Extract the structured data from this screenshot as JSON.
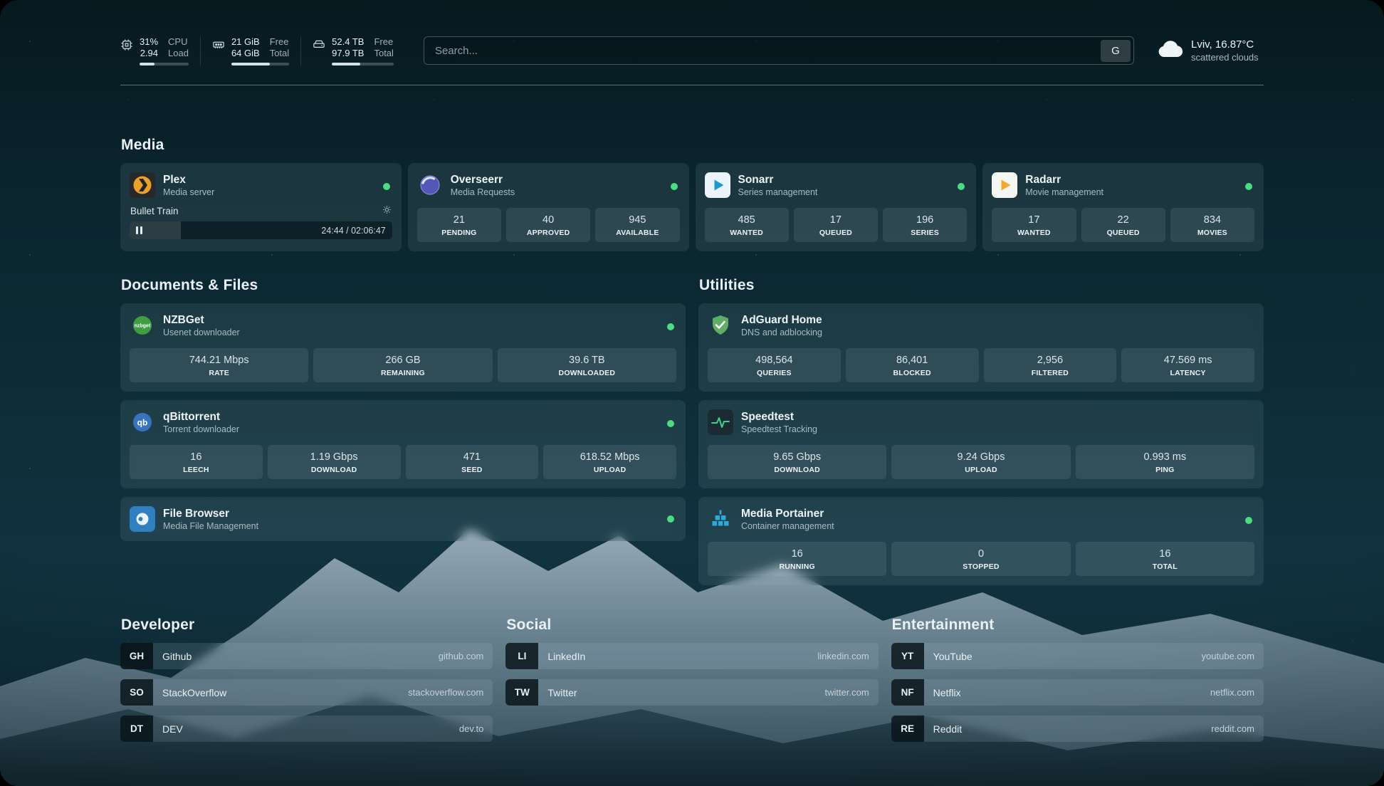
{
  "header": {
    "metrics": [
      {
        "icon": "cpu-icon",
        "rows": [
          {
            "value": "31%",
            "label": "CPU"
          },
          {
            "value": "2.94",
            "label": "Load"
          }
        ],
        "bar": 31
      },
      {
        "icon": "memory-icon",
        "rows": [
          {
            "value": "21 GiB",
            "label": "Free"
          },
          {
            "value": "64 GiB",
            "label": "Total"
          }
        ],
        "bar": 67
      },
      {
        "icon": "disk-icon",
        "rows": [
          {
            "value": "52.4 TB",
            "label": "Free"
          },
          {
            "value": "97.9 TB",
            "label": "Total"
          }
        ],
        "bar": 46
      }
    ],
    "search": {
      "placeholder": "Search...",
      "button_label": "G"
    },
    "weather": {
      "location": "Lviv, 16.87°C",
      "condition": "scattered clouds"
    }
  },
  "groups": {
    "media": {
      "title": "Media",
      "cards": [
        {
          "name": "Plex",
          "subtitle": "Media server",
          "icon": "plex-icon",
          "online": true,
          "player": {
            "title": "Bullet Train",
            "time": "24:44 / 02:06:47",
            "progress": 19.5
          }
        },
        {
          "name": "Overseerr",
          "subtitle": "Media Requests",
          "icon": "overseerr-icon",
          "online": true,
          "stats": [
            {
              "value": "21",
              "label": "PENDING"
            },
            {
              "value": "40",
              "label": "APPROVED"
            },
            {
              "value": "945",
              "label": "AVAILABLE"
            }
          ]
        },
        {
          "name": "Sonarr",
          "subtitle": "Series management",
          "icon": "sonarr-icon",
          "online": true,
          "stats": [
            {
              "value": "485",
              "label": "WANTED"
            },
            {
              "value": "17",
              "label": "QUEUED"
            },
            {
              "value": "196",
              "label": "SERIES"
            }
          ]
        },
        {
          "name": "Radarr",
          "subtitle": "Movie management",
          "icon": "radarr-icon",
          "online": true,
          "stats": [
            {
              "value": "17",
              "label": "WANTED"
            },
            {
              "value": "22",
              "label": "QUEUED"
            },
            {
              "value": "834",
              "label": "MOVIES"
            }
          ]
        }
      ]
    },
    "documents": {
      "title": "Documents & Files",
      "cards": [
        {
          "name": "NZBGet",
          "subtitle": "Usenet downloader",
          "icon": "nzbget-icon",
          "online": true,
          "stats": [
            {
              "value": "744.21 Mbps",
              "label": "RATE"
            },
            {
              "value": "266 GB",
              "label": "REMAINING"
            },
            {
              "value": "39.6 TB",
              "label": "DOWNLOADED"
            }
          ]
        },
        {
          "name": "qBittorrent",
          "subtitle": "Torrent downloader",
          "icon": "qbittorrent-icon",
          "online": true,
          "stats": [
            {
              "value": "16",
              "label": "LEECH"
            },
            {
              "value": "1.19 Gbps",
              "label": "DOWNLOAD"
            },
            {
              "value": "471",
              "label": "SEED"
            },
            {
              "value": "618.52 Mbps",
              "label": "UPLOAD"
            }
          ]
        },
        {
          "name": "File Browser",
          "subtitle": "Media File Management",
          "icon": "filebrowser-icon",
          "online": true,
          "stats": []
        }
      ]
    },
    "utilities": {
      "title": "Utilities",
      "cards": [
        {
          "name": "AdGuard Home",
          "subtitle": "DNS and adblocking",
          "icon": "adguard-icon",
          "online": false,
          "stats": [
            {
              "value": "498,564",
              "label": "QUERIES"
            },
            {
              "value": "86,401",
              "label": "BLOCKED"
            },
            {
              "value": "2,956",
              "label": "FILTERED"
            },
            {
              "value": "47.569 ms",
              "label": "LATENCY"
            }
          ]
        },
        {
          "name": "Speedtest",
          "subtitle": "Speedtest Tracking",
          "icon": "speedtest-icon",
          "online": false,
          "stats": [
            {
              "value": "9.65 Gbps",
              "label": "DOWNLOAD"
            },
            {
              "value": "9.24 Gbps",
              "label": "UPLOAD"
            },
            {
              "value": "0.993 ms",
              "label": "PING"
            }
          ]
        },
        {
          "name": "Media Portainer",
          "subtitle": "Container management",
          "icon": "portainer-icon",
          "online": true,
          "stats": [
            {
              "value": "16",
              "label": "RUNNING"
            },
            {
              "value": "0",
              "label": "STOPPED"
            },
            {
              "value": "16",
              "label": "TOTAL"
            }
          ]
        }
      ]
    },
    "bookmarks": [
      {
        "title": "Developer",
        "items": [
          {
            "abbr": "GH",
            "name": "Github",
            "url": "github.com"
          },
          {
            "abbr": "SO",
            "name": "StackOverflow",
            "url": "stackoverflow.com"
          },
          {
            "abbr": "DT",
            "name": "DEV",
            "url": "dev.to"
          }
        ]
      },
      {
        "title": "Social",
        "items": [
          {
            "abbr": "LI",
            "name": "LinkedIn",
            "url": "linkedin.com"
          },
          {
            "abbr": "TW",
            "name": "Twitter",
            "url": "twitter.com"
          }
        ]
      },
      {
        "title": "Entertainment",
        "items": [
          {
            "abbr": "YT",
            "name": "YouTube",
            "url": "youtube.com"
          },
          {
            "abbr": "NF",
            "name": "Netflix",
            "url": "netflix.com"
          },
          {
            "abbr": "RE",
            "name": "Reddit",
            "url": "reddit.com"
          }
        ]
      }
    ]
  },
  "colors": {
    "online": "#4ade80"
  }
}
